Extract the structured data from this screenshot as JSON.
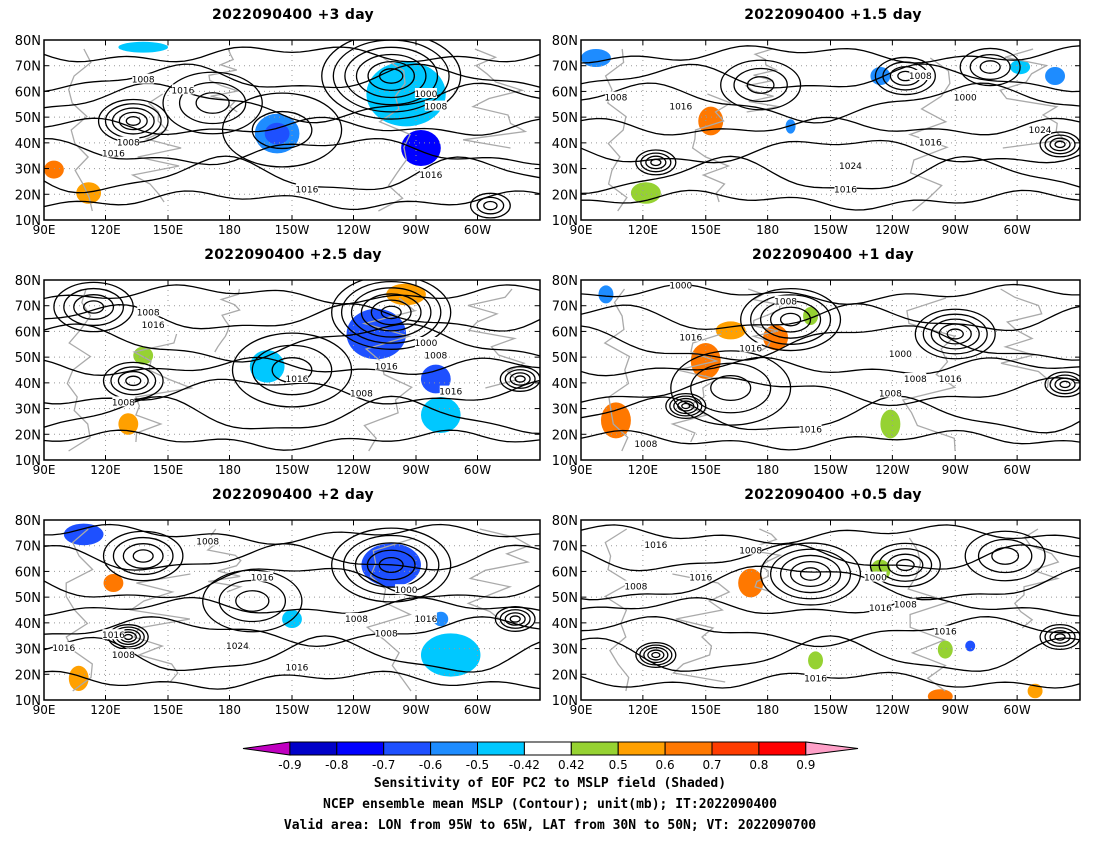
{
  "panels": [
    {
      "id": "p1",
      "title": "2022090400  +3 day"
    },
    {
      "id": "p2",
      "title": "2022090400  +1.5 day"
    },
    {
      "id": "p3",
      "title": "2022090400  +2.5 day"
    },
    {
      "id": "p4",
      "title": "2022090400  +1 day"
    },
    {
      "id": "p5",
      "title": "2022090400  +2 day"
    },
    {
      "id": "p6",
      "title": "2022090400  +0.5 day"
    }
  ],
  "lat_labels": [
    "80N",
    "70N",
    "60N",
    "50N",
    "40N",
    "30N",
    "20N",
    "10N"
  ],
  "lon_labels": [
    "90E",
    "120E",
    "150E",
    "180",
    "150W",
    "120W",
    "90W",
    "60W"
  ],
  "contour_label_values": [
    "1000",
    "1008",
    "1016",
    "1024"
  ],
  "colorbar": {
    "labels": [
      "-0.9",
      "-0.8",
      "-0.7",
      "-0.6",
      "-0.5",
      "-0.42",
      "0.42",
      "0.5",
      "0.6",
      "0.7",
      "0.8",
      "0.9"
    ],
    "colors": [
      "#c000c0",
      "#0000c8",
      "#0000ff",
      "#1e50ff",
      "#1e8cff",
      "#00c8ff",
      "#ffffff",
      "#96d232",
      "#ffa000",
      "#ff7800",
      "#ff3c00",
      "#ff0000",
      "#ffa0c8"
    ]
  },
  "caption": {
    "line1": "Sensitivity of EOF PC2 to MSLP field (Shaded)",
    "line2": "NCEP ensemble mean MSLP (Contour); unit(mb); IT:2022090400",
    "line3": "Valid area: LON from 95W to 65W, LAT from 30N to 50N; VT: 2022090700"
  }
}
